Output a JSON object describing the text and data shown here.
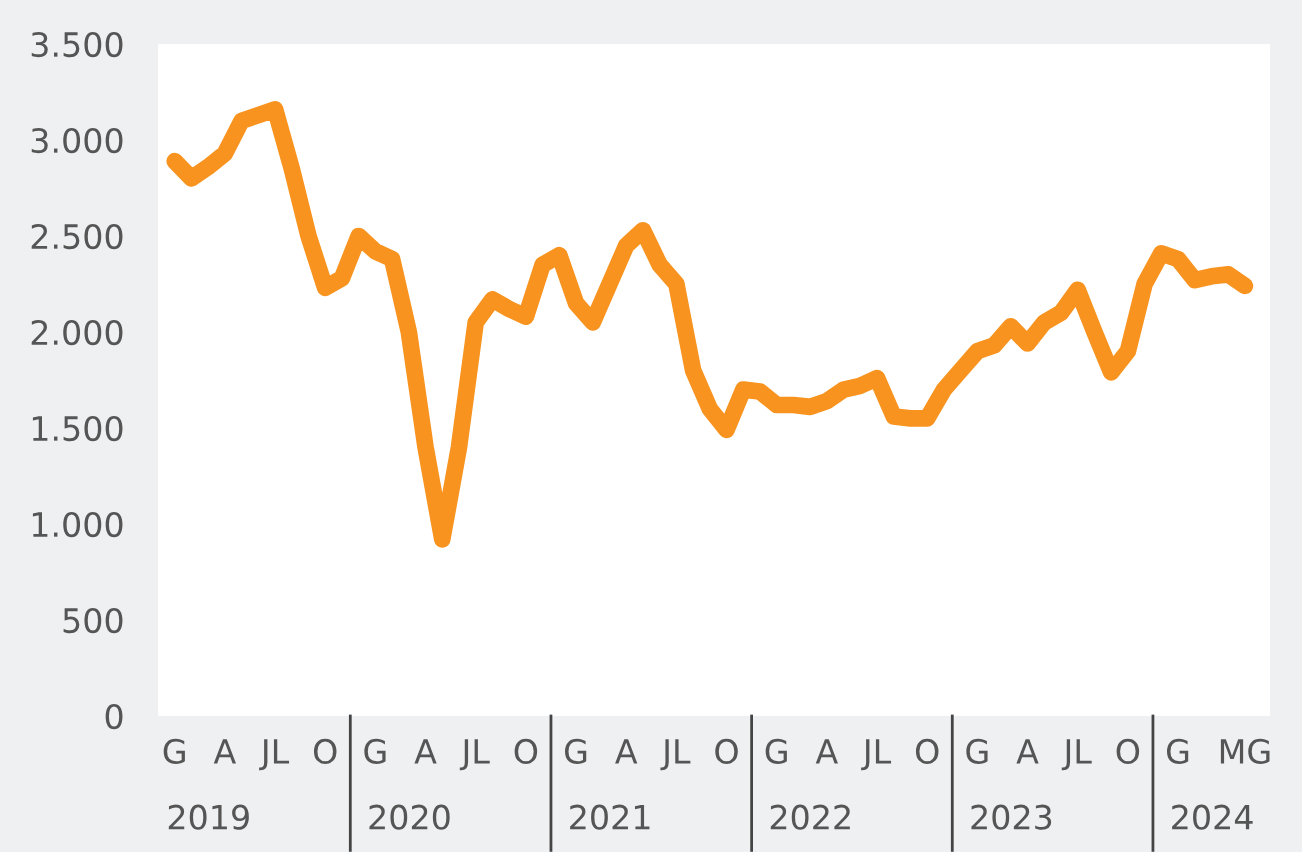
{
  "chart_data": {
    "type": "line",
    "categories": [
      "G",
      null,
      null,
      "A",
      null,
      null,
      "JL",
      null,
      null,
      "O",
      null,
      null,
      "G",
      null,
      null,
      "A",
      null,
      null,
      "JL",
      null,
      null,
      "O",
      null,
      null,
      "G",
      null,
      null,
      "A",
      null,
      null,
      "JL",
      null,
      null,
      "O",
      null,
      null,
      "G",
      null,
      null,
      "A",
      null,
      null,
      "JL",
      null,
      null,
      "O",
      null,
      null,
      "G",
      null,
      null,
      "A",
      null,
      null,
      "JL",
      null,
      null,
      "O",
      null,
      null,
      "G",
      null,
      null,
      null,
      "MG"
    ],
    "series": [
      {
        "color": "#f7931e",
        "values": [
          2890,
          2800,
          2860,
          2930,
          3100,
          3130,
          3160,
          2850,
          2500,
          2230,
          2280,
          2500,
          2420,
          2380,
          2000,
          1400,
          920,
          1400,
          2050,
          2170,
          2120,
          2080,
          2350,
          2400,
          2150,
          2050,
          2250,
          2450,
          2530,
          2350,
          2250,
          1800,
          1600,
          1490,
          1700,
          1690,
          1620,
          1620,
          1610,
          1640,
          1700,
          1720,
          1760,
          1560,
          1550,
          1550,
          1700,
          1800,
          1900,
          1930,
          2030,
          1940,
          2050,
          2100,
          2220,
          2000,
          1790,
          1900,
          2250,
          2410,
          2380,
          2270,
          2290,
          2300,
          2240
        ]
      }
    ],
    "ylim": [
      0,
      3500
    ],
    "yticks": [
      0,
      {
        "value": 500,
        "label": "500"
      },
      {
        "value": 1000,
        "label": "1.000"
      },
      {
        "value": 1500,
        "label": "1.500"
      },
      {
        "value": 2000,
        "label": "2.000"
      },
      {
        "value": 2500,
        "label": "2.500"
      },
      {
        "value": 3000,
        "label": "3.000"
      },
      {
        "value": 3500,
        "label": "3.500"
      }
    ],
    "annotations": [
      "2019",
      "2020",
      "2021",
      "2022",
      "2023",
      "2024"
    ],
    "grid": false,
    "legend": false,
    "marker": "none",
    "line_style": "solid"
  }
}
